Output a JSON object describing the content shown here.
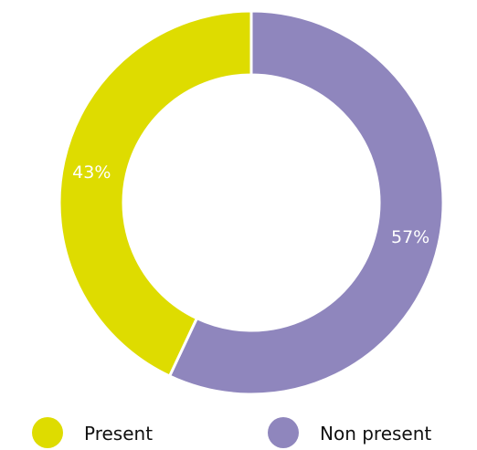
{
  "chart_data": {
    "type": "pie",
    "style": "donut",
    "categories": [
      "Present",
      "Non present"
    ],
    "values": [
      43,
      57
    ],
    "value_labels": [
      "43%",
      "57%"
    ],
    "colors": [
      "#dedc00",
      "#8f86bd"
    ],
    "title": "",
    "legend_position": "bottom"
  }
}
